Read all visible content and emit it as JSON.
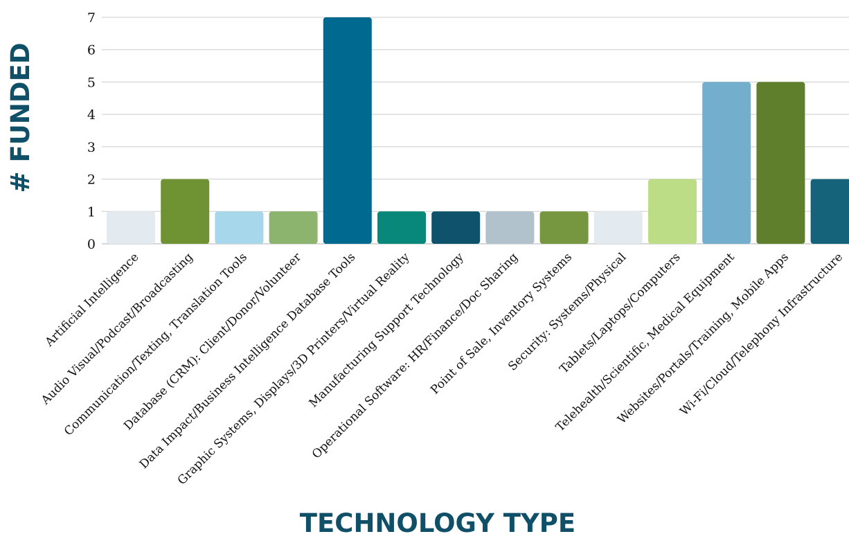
{
  "chart_data": {
    "type": "bar",
    "xlabel": "TECHNOLOGY TYPE",
    "ylabel": "# FUNDED",
    "ylim": [
      0,
      7
    ],
    "yticks": [
      "0",
      "1",
      "2",
      "3",
      "4",
      "5",
      "6",
      "7"
    ],
    "grid": true,
    "categories": [
      "Artificial Intelligence",
      "Audio Visual/Podcast/Broadcasting",
      "Communication/Texting, Translation Tools",
      "Database (CRM): Client/Donor/Volunteer",
      "Data Impact/Business Intelligence Database Tools",
      "Graphic Systems, Displays/3D Printers/Virtual Reality",
      "Manufacturing Support Technology",
      "Operational Software: HR/Finance/Doc Sharing",
      "Point of Sale, Inventory Systems",
      "Security: Systems/Physical",
      "Tablets/Laptops/Computers",
      "Telehealth/Scientific, Medical Equipment",
      "Websites/Portals/Training, Mobile Apps",
      "Wi-Fi/Cloud/Telephony Infrastructure"
    ],
    "values": [
      1,
      2,
      1,
      1,
      7,
      1,
      1,
      1,
      1,
      1,
      2,
      5,
      5,
      2
    ],
    "colors": [
      "#e3ebf1",
      "#6f9232",
      "#a7d7ea",
      "#8cb46e",
      "#00698f",
      "#08887a",
      "#0e526c",
      "#b1c2cc",
      "#76963f",
      "#e3ebf1",
      "#bcdc85",
      "#74aecd",
      "#607f2d",
      "#15627b"
    ]
  }
}
